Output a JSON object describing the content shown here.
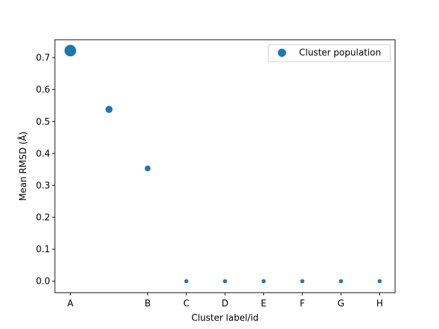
{
  "chart_data": {
    "type": "scatter",
    "title": "",
    "xlabel": "Cluster label/id",
    "ylabel": "Mean RMSD (Å)",
    "xlim": [
      -0.4,
      8.4
    ],
    "ylim": [
      -0.036,
      0.756
    ],
    "x_ticks": [
      {
        "value": 0,
        "label": "A"
      },
      {
        "value": 2,
        "label": "B"
      },
      {
        "value": 3,
        "label": "C"
      },
      {
        "value": 4,
        "label": "D"
      },
      {
        "value": 5,
        "label": "E"
      },
      {
        "value": 6,
        "label": "F"
      },
      {
        "value": 7,
        "label": "G"
      },
      {
        "value": 8,
        "label": "H"
      }
    ],
    "y_ticks": [
      0.0,
      0.1,
      0.2,
      0.3,
      0.4,
      0.5,
      0.6,
      0.7
    ],
    "y_tick_labels": [
      "0.0",
      "0.1",
      "0.2",
      "0.3",
      "0.4",
      "0.5",
      "0.6",
      "0.7"
    ],
    "grid": false,
    "legend": {
      "position": "top-right",
      "entries": [
        "Cluster population"
      ]
    },
    "series": [
      {
        "name": "Cluster population",
        "color": "#1f77b4",
        "points": [
          {
            "x": 0,
            "y": 0.722,
            "size": 8
          },
          {
            "x": 1,
            "y": 0.538,
            "size": 3
          },
          {
            "x": 2,
            "y": 0.353,
            "size": 2
          },
          {
            "x": 3,
            "y": 0.0,
            "size": 1
          },
          {
            "x": 4,
            "y": 0.0,
            "size": 1
          },
          {
            "x": 5,
            "y": 0.0,
            "size": 1
          },
          {
            "x": 6,
            "y": 0.0,
            "size": 1
          },
          {
            "x": 7,
            "y": 0.0,
            "size": 1
          },
          {
            "x": 8,
            "y": 0.0,
            "size": 1
          }
        ]
      }
    ]
  }
}
